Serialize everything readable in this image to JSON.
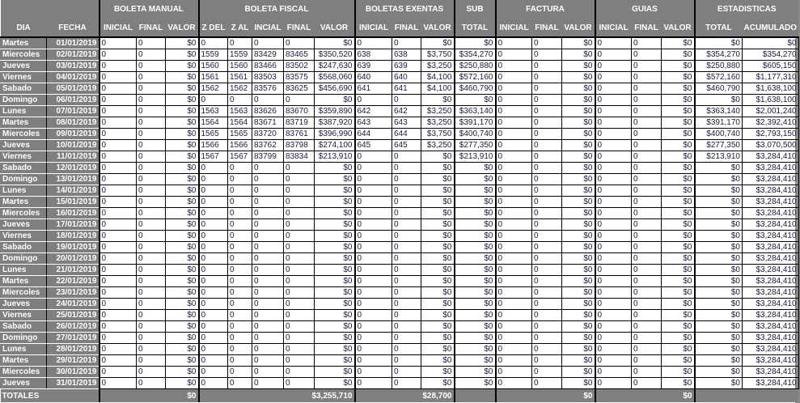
{
  "groups": [
    "BOLETA MANUAL",
    "BOLETA FISCAL",
    "BOLETAS EXENTAS",
    "SUB",
    "FACTURA",
    "GUIAS",
    "ESTADISTICAS"
  ],
  "columns": [
    "DIA",
    "FECHA",
    "INICIAL",
    "FINAL",
    "VALOR",
    "Z DEL",
    "Z AL",
    "INCIAL",
    "FINAL",
    "VALOR",
    "INICIAL",
    "FINAL",
    "VALOR",
    "TOTAL",
    "INICIAL",
    "FINAL",
    "VALOR",
    "INICIAL",
    "FINAL",
    "VALOR",
    "TOTAL",
    "ACUMULADO"
  ],
  "rows": [
    [
      "Martes",
      "01/01/2019",
      "0",
      "0",
      "$0",
      "0",
      "0",
      "0",
      "0",
      "$0",
      "0",
      "0",
      "$0",
      "$0",
      "0",
      "0",
      "$0",
      "0",
      "0",
      "$0",
      "$0",
      "$0"
    ],
    [
      "Miercoles",
      "02/01/2019",
      "0",
      "0",
      "$0",
      "1559",
      "1559",
      "83429",
      "83465",
      "$350,520",
      "638",
      "638",
      "$3,750",
      "$354,270",
      "0",
      "0",
      "$0",
      "0",
      "0",
      "$0",
      "$354,270",
      "$354,270"
    ],
    [
      "Jueves",
      "03/01/2019",
      "0",
      "0",
      "$0",
      "1560",
      "1560",
      "83466",
      "83502",
      "$247,630",
      "639",
      "639",
      "$3,250",
      "$250,880",
      "0",
      "0",
      "$0",
      "0",
      "0",
      "$0",
      "$250,880",
      "$605,150"
    ],
    [
      "Viernes",
      "04/01/2019",
      "0",
      "0",
      "$0",
      "1561",
      "1561",
      "83503",
      "83575",
      "$568,060",
      "640",
      "640",
      "$4,100",
      "$572,160",
      "0",
      "0",
      "$0",
      "0",
      "0",
      "$0",
      "$572,160",
      "$1,177,310"
    ],
    [
      "Sabado",
      "05/01/2019",
      "0",
      "0",
      "$0",
      "1562",
      "1562",
      "83576",
      "83625",
      "$456,690",
      "641",
      "641",
      "$4,100",
      "$460,790",
      "0",
      "0",
      "$0",
      "0",
      "0",
      "$0",
      "$460,790",
      "$1,638,100"
    ],
    [
      "Domingo",
      "06/01/2019",
      "0",
      "0",
      "$0",
      "0",
      "0",
      "0",
      "0",
      "$0",
      "0",
      "0",
      "$0",
      "$0",
      "0",
      "0",
      "$0",
      "0",
      "0",
      "$0",
      "$0",
      "$1,638,100"
    ],
    [
      "Lunes",
      "07/01/2019",
      "0",
      "0",
      "$0",
      "1563",
      "1563",
      "83626",
      "83670",
      "$359,890",
      "642",
      "642",
      "$3,250",
      "$363,140",
      "0",
      "0",
      "$0",
      "0",
      "0",
      "$0",
      "$363,140",
      "$2,001,240"
    ],
    [
      "Martes",
      "08/01/2019",
      "0",
      "0",
      "$0",
      "1564",
      "1564",
      "83671",
      "83719",
      "$387,920",
      "643",
      "643",
      "$3,250",
      "$391,170",
      "0",
      "0",
      "$0",
      "0",
      "0",
      "$0",
      "$391,170",
      "$2,392,410"
    ],
    [
      "Miercoles",
      "09/01/2019",
      "0",
      "0",
      "$0",
      "1565",
      "1565",
      "83720",
      "83761",
      "$396,990",
      "644",
      "644",
      "$3,750",
      "$400,740",
      "0",
      "0",
      "$0",
      "0",
      "0",
      "$0",
      "$400,740",
      "$2,793,150"
    ],
    [
      "Jueves",
      "10/01/2019",
      "0",
      "0",
      "$0",
      "1566",
      "1566",
      "83762",
      "83798",
      "$274,100",
      "645",
      "645",
      "$3,250",
      "$277,350",
      "0",
      "0",
      "$0",
      "0",
      "0",
      "$0",
      "$277,350",
      "$3,070,500"
    ],
    [
      "Viernes",
      "11/01/2019",
      "0",
      "0",
      "$0",
      "1567",
      "1567",
      "83799",
      "83834",
      "$213,910",
      "0",
      "0",
      "$0",
      "$213,910",
      "0",
      "0",
      "$0",
      "0",
      "0",
      "$0",
      "$213,910",
      "$3,284,410"
    ],
    [
      "Sabado",
      "12/01/2019",
      "0",
      "0",
      "$0",
      "0",
      "0",
      "0",
      "0",
      "$0",
      "0",
      "0",
      "$0",
      "$0",
      "0",
      "0",
      "$0",
      "0",
      "0",
      "$0",
      "$0",
      "$3,284,410"
    ],
    [
      "Domingo",
      "13/01/2019",
      "0",
      "0",
      "$0",
      "0",
      "0",
      "0",
      "0",
      "$0",
      "0",
      "0",
      "$0",
      "$0",
      "0",
      "0",
      "$0",
      "0",
      "0",
      "$0",
      "$0",
      "$3,284,410"
    ],
    [
      "Lunes",
      "14/01/2019",
      "0",
      "0",
      "$0",
      "0",
      "0",
      "0",
      "0",
      "$0",
      "0",
      "0",
      "$0",
      "$0",
      "0",
      "0",
      "$0",
      "0",
      "0",
      "$0",
      "$0",
      "$3,284,410"
    ],
    [
      "Martes",
      "15/01/2019",
      "0",
      "0",
      "$0",
      "0",
      "0",
      "0",
      "0",
      "$0",
      "0",
      "0",
      "$0",
      "$0",
      "0",
      "0",
      "$0",
      "0",
      "0",
      "$0",
      "$0",
      "$3,284,410"
    ],
    [
      "Miercoles",
      "16/01/2019",
      "0",
      "0",
      "$0",
      "0",
      "0",
      "0",
      "0",
      "$0",
      "0",
      "0",
      "$0",
      "$0",
      "0",
      "0",
      "$0",
      "0",
      "0",
      "$0",
      "$0",
      "$3,284,410"
    ],
    [
      "Jueves",
      "17/01/2019",
      "0",
      "0",
      "$0",
      "0",
      "0",
      "0",
      "0",
      "$0",
      "0",
      "0",
      "$0",
      "$0",
      "0",
      "0",
      "$0",
      "0",
      "0",
      "$0",
      "$0",
      "$3,284,410"
    ],
    [
      "Viernes",
      "18/01/2019",
      "0",
      "0",
      "$0",
      "0",
      "0",
      "0",
      "0",
      "$0",
      "0",
      "0",
      "$0",
      "$0",
      "0",
      "0",
      "$0",
      "0",
      "0",
      "$0",
      "$0",
      "$3,284,410"
    ],
    [
      "Sabado",
      "19/01/2019",
      "0",
      "0",
      "$0",
      "0",
      "0",
      "0",
      "0",
      "$0",
      "0",
      "0",
      "$0",
      "$0",
      "0",
      "0",
      "$0",
      "0",
      "0",
      "$0",
      "$0",
      "$3,284,410"
    ],
    [
      "Domingo",
      "20/01/2019",
      "0",
      "0",
      "$0",
      "0",
      "0",
      "0",
      "0",
      "$0",
      "0",
      "0",
      "$0",
      "$0",
      "0",
      "0",
      "$0",
      "0",
      "0",
      "$0",
      "$0",
      "$3,284,410"
    ],
    [
      "Lunes",
      "21/01/2019",
      "0",
      "0",
      "$0",
      "0",
      "0",
      "0",
      "0",
      "$0",
      "0",
      "0",
      "$0",
      "$0",
      "0",
      "0",
      "$0",
      "0",
      "0",
      "$0",
      "$0",
      "$3,284,410"
    ],
    [
      "Martes",
      "22/01/2019",
      "0",
      "0",
      "$0",
      "0",
      "0",
      "0",
      "0",
      "$0",
      "0",
      "0",
      "$0",
      "$0",
      "0",
      "0",
      "$0",
      "0",
      "0",
      "$0",
      "$0",
      "$3,284,410"
    ],
    [
      "Miercoles",
      "23/01/2019",
      "0",
      "0",
      "$0",
      "0",
      "0",
      "0",
      "0",
      "$0",
      "0",
      "0",
      "$0",
      "$0",
      "0",
      "0",
      "$0",
      "0",
      "0",
      "$0",
      "$0",
      "$3,284,410"
    ],
    [
      "Jueves",
      "24/01/2019",
      "0",
      "0",
      "$0",
      "0",
      "0",
      "0",
      "0",
      "$0",
      "0",
      "0",
      "$0",
      "$0",
      "0",
      "0",
      "$0",
      "0",
      "0",
      "$0",
      "$0",
      "$3,284,410"
    ],
    [
      "Viernes",
      "25/01/2019",
      "0",
      "0",
      "$0",
      "0",
      "0",
      "0",
      "0",
      "$0",
      "0",
      "0",
      "$0",
      "$0",
      "0",
      "0",
      "$0",
      "0",
      "0",
      "$0",
      "$0",
      "$3,284,410"
    ],
    [
      "Sabado",
      "26/01/2019",
      "0",
      "0",
      "$0",
      "0",
      "0",
      "0",
      "0",
      "$0",
      "0",
      "0",
      "$0",
      "$0",
      "0",
      "0",
      "$0",
      "0",
      "0",
      "$0",
      "$0",
      "$3,284,410"
    ],
    [
      "Domingo",
      "27/01/2019",
      "0",
      "0",
      "$0",
      "0",
      "0",
      "0",
      "0",
      "$0",
      "0",
      "0",
      "$0",
      "$0",
      "0",
      "0",
      "$0",
      "0",
      "0",
      "$0",
      "$0",
      "$3,284,410"
    ],
    [
      "Lunes",
      "28/01/2019",
      "0",
      "0",
      "$0",
      "0",
      "0",
      "0",
      "0",
      "$0",
      "0",
      "0",
      "$0",
      "$0",
      "0",
      "0",
      "$0",
      "0",
      "0",
      "$0",
      "$0",
      "$3,284,410"
    ],
    [
      "Martes",
      "29/01/2019",
      "0",
      "0",
      "$0",
      "0",
      "0",
      "0",
      "0",
      "$0",
      "0",
      "0",
      "$0",
      "$0",
      "0",
      "0",
      "$0",
      "0",
      "0",
      "$0",
      "$0",
      "$3,284,410"
    ],
    [
      "Miercoles",
      "30/01/2019",
      "0",
      "0",
      "$0",
      "0",
      "0",
      "0",
      "0",
      "$0",
      "0",
      "0",
      "$0",
      "$0",
      "0",
      "0",
      "$0",
      "0",
      "0",
      "$0",
      "$0",
      "$3,284,410"
    ],
    [
      "Jueves",
      "31/01/2019",
      "0",
      "0",
      "$0",
      "0",
      "0",
      "0",
      "0",
      "$0",
      "0",
      "0",
      "$0",
      "$0",
      "0",
      "0",
      "$0",
      "0",
      "0",
      "$0",
      "$0",
      "$3,284,410"
    ]
  ],
  "totals": {
    "label": "TOTALES",
    "boleta_manual": "$0",
    "boleta_fiscal": "$3,255,710",
    "boletas_exentas": "$28,700",
    "factura": "$0",
    "guias": "$0"
  }
}
